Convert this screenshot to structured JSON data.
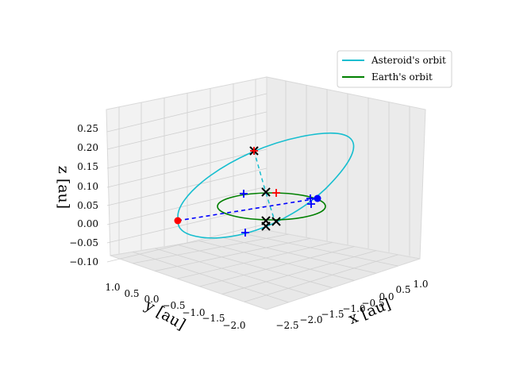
{
  "chart_data": {
    "type": "line",
    "projection": "3d",
    "grid": true,
    "legend_position": "top-right",
    "axes": {
      "x": {
        "label": "x [au]",
        "ticks": [
          "−2.5",
          "−2.0",
          "−1.5",
          "−1.0",
          "−0.5",
          "0.0",
          "0.5",
          "1.0"
        ]
      },
      "y": {
        "label": "y [au]",
        "ticks": [
          "1.0",
          "0.5",
          "0.0",
          "−0.5",
          "−1.0",
          "−1.5",
          "−2.0"
        ]
      },
      "z": {
        "label": "z [au]",
        "ticks": [
          "0.25",
          "0.20",
          "0.15",
          "0.10",
          "0.05",
          "0.00",
          "−0.05",
          "−0.10"
        ],
        "range": [
          -0.1,
          0.27
        ]
      }
    },
    "series": [
      {
        "name": "Asteroid's orbit",
        "color": "#17becf",
        "style": "solid"
      },
      {
        "name": "Earth's orbit",
        "color": "#008000",
        "style": "solid"
      }
    ],
    "marker_colors": {
      "asteroid_node": "#ff0000",
      "earth_point": "#0000ff",
      "cross": "#000000",
      "link_asteroid": "#17becf",
      "link_earth": "#0000ff"
    }
  }
}
